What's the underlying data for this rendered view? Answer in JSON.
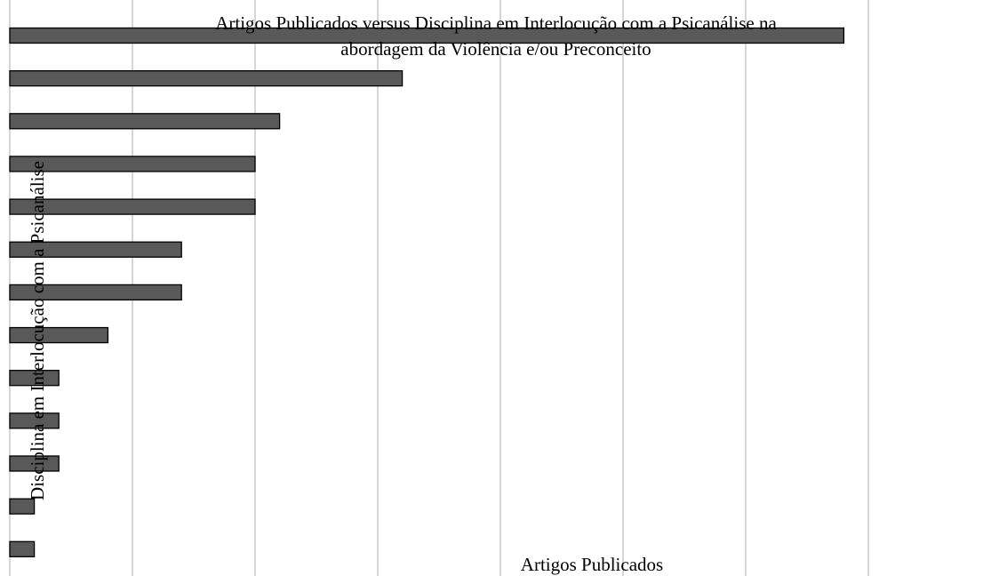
{
  "chart_data": {
    "type": "bar",
    "orientation": "horizontal",
    "title_lines": [
      "Artigos Publicados versus Disciplina em Interlocução com a Psicanálise na",
      "abordagem da Violência e/ou Preconceito"
    ],
    "xlabel": "Artigos Publicados",
    "ylabel": "Disciplina em Interlocução com a Psicanálise",
    "values": [
      34,
      16,
      11,
      10,
      10,
      7,
      7,
      4,
      2,
      2,
      2,
      1,
      1
    ],
    "xlim": [
      0,
      35
    ],
    "gridlines": [
      0,
      5,
      10,
      15,
      20,
      25,
      30,
      35
    ],
    "grid": true,
    "colors": {
      "bar": "#595959",
      "bar_border": "#000000",
      "grid": "#bfbfbf"
    }
  }
}
